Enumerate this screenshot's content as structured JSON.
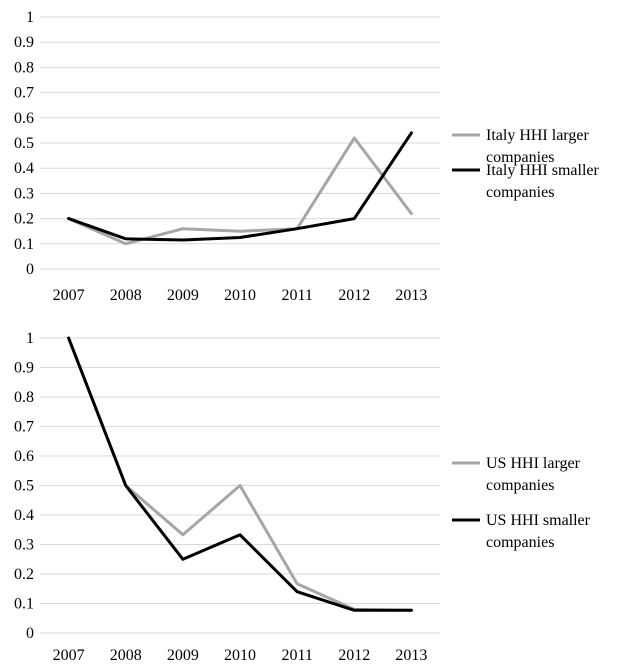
{
  "chart_data": [
    {
      "type": "line",
      "title": "",
      "xlabel": "",
      "ylabel": "",
      "categories": [
        "2007",
        "2008",
        "2009",
        "2010",
        "2011",
        "2012",
        "2013"
      ],
      "ylim": [
        0,
        1
      ],
      "yticks": [
        "0",
        "0.1",
        "0.2",
        "0.3",
        "0.4",
        "0.5",
        "0.6",
        "0.7",
        "0.8",
        "0.9",
        "1"
      ],
      "grid": true,
      "legend_position": "right",
      "series": [
        {
          "name": "Italy HHI larger companies",
          "legend_lines": [
            "Italy HHI larger",
            "companies"
          ],
          "color": "#a6a6a6",
          "values": [
            0.2,
            0.1,
            0.16,
            0.15,
            0.16,
            0.52,
            0.22
          ]
        },
        {
          "name": "Italy HHI smaller companies",
          "legend_lines": [
            "Italy HHI smaller",
            "companies"
          ],
          "color": "#000000",
          "values": [
            0.2,
            0.12,
            0.115,
            0.125,
            0.16,
            0.2,
            0.54
          ]
        }
      ]
    },
    {
      "type": "line",
      "title": "",
      "xlabel": "",
      "ylabel": "",
      "categories": [
        "2007",
        "2008",
        "2009",
        "2010",
        "2011",
        "2012",
        "2013"
      ],
      "ylim": [
        0,
        1
      ],
      "yticks": [
        "0",
        "0.1",
        "0.2",
        "0.3",
        "0.4",
        "0.5",
        "0.6",
        "0.7",
        "0.8",
        "0.9",
        "1"
      ],
      "grid": true,
      "legend_position": "right",
      "series": [
        {
          "name": "US HHI larger companies",
          "legend_lines": [
            "US HHI larger",
            "companies"
          ],
          "color": "#a6a6a6",
          "values": [
            1.0,
            0.5,
            0.333,
            0.5,
            0.167,
            0.08,
            0.077
          ]
        },
        {
          "name": "US HHI smaller companies",
          "legend_lines": [
            "US HHI smaller",
            "companies"
          ],
          "color": "#000000",
          "values": [
            1.0,
            0.5,
            0.25,
            0.333,
            0.14,
            0.077,
            0.077
          ]
        }
      ]
    }
  ]
}
